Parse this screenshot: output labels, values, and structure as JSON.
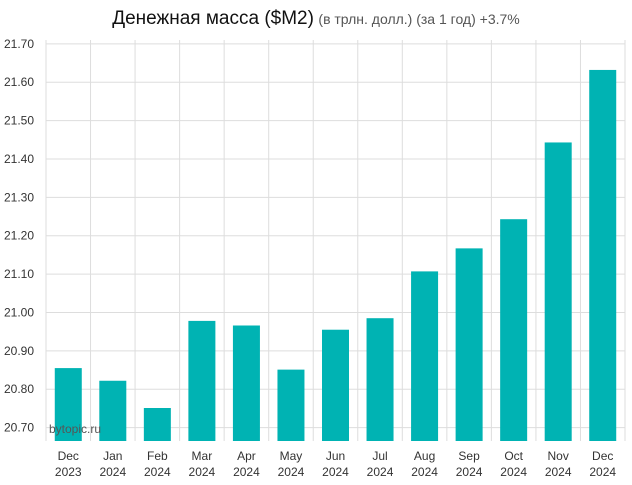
{
  "chart_data": {
    "type": "bar",
    "title": "Денежная масса ($M2)",
    "subtitle": "(в трлн. долл.) (за 1 год) +3.7%",
    "watermark": "bytopic.ru",
    "categories": [
      [
        "Dec",
        "2023"
      ],
      [
        "Jan",
        "2024"
      ],
      [
        "Feb",
        "2024"
      ],
      [
        "Mar",
        "2024"
      ],
      [
        "Apr",
        "2024"
      ],
      [
        "May",
        "2024"
      ],
      [
        "Jun",
        "2024"
      ],
      [
        "Jul",
        "2024"
      ],
      [
        "Aug",
        "2024"
      ],
      [
        "Sep",
        "2024"
      ],
      [
        "Oct",
        "2024"
      ],
      [
        "Nov",
        "2024"
      ],
      [
        "Dec",
        "2024"
      ]
    ],
    "values": [
      20.855,
      20.822,
      20.751,
      20.978,
      20.966,
      20.851,
      20.955,
      20.985,
      21.107,
      21.167,
      21.243,
      21.443,
      21.632
    ],
    "ylim": [
      20.665,
      21.71
    ],
    "yticks": [
      "20.70",
      "20.80",
      "20.90",
      "21.00",
      "21.10",
      "21.20",
      "21.30",
      "21.40",
      "21.50",
      "21.60",
      "21.70"
    ],
    "ytick_values": [
      20.7,
      20.8,
      20.9,
      21.0,
      21.1,
      21.2,
      21.3,
      21.4,
      21.5,
      21.6,
      21.7
    ],
    "bar_color": "#00b3b3",
    "grid_color": "#dddddd",
    "grid": true,
    "legend": "none"
  }
}
